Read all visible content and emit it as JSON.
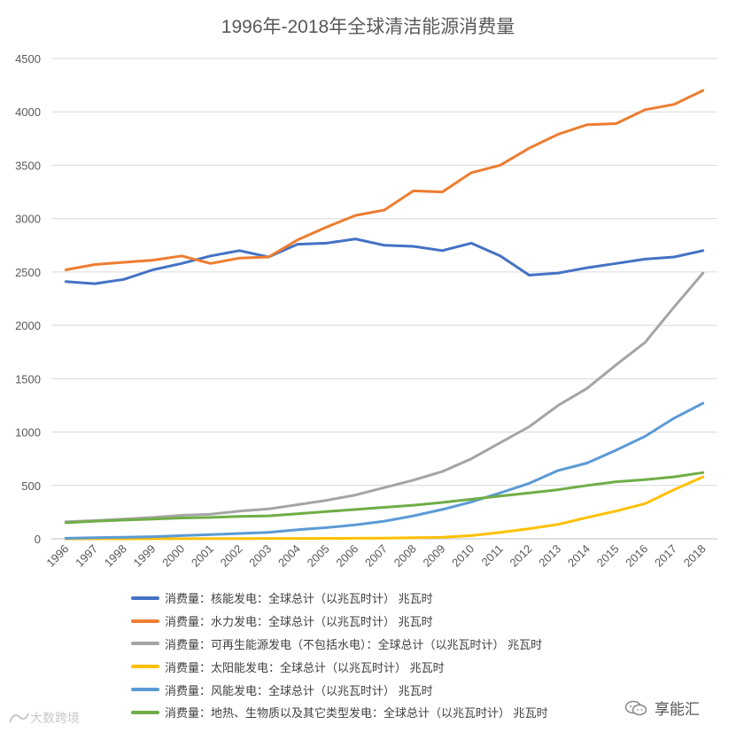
{
  "chart_data": {
    "type": "line",
    "title": "1996年-2018年全球清洁能源消费量",
    "xlabel": "",
    "ylabel": "",
    "ylim": [
      0,
      4500
    ],
    "yticks": [
      0,
      500,
      1000,
      1500,
      2000,
      2500,
      3000,
      3500,
      4000,
      4500
    ],
    "grid": true,
    "legend_position": "bottom",
    "categories": [
      "1996",
      "1997",
      "1998",
      "1999",
      "2000",
      "2001",
      "2002",
      "2003",
      "2004",
      "2005",
      "2006",
      "2007",
      "2008",
      "2009",
      "2010",
      "2011",
      "2012",
      "2013",
      "2014",
      "2015",
      "2016",
      "2017",
      "2018"
    ],
    "series": [
      {
        "name": "消费量：核能发电：全球总计（以兆瓦时计） 兆瓦时",
        "color": "#4472c4",
        "values": [
          2410,
          2390,
          2430,
          2520,
          2580,
          2650,
          2700,
          2640,
          2760,
          2770,
          2810,
          2750,
          2740,
          2700,
          2770,
          2650,
          2470,
          2490,
          2540,
          2580,
          2620,
          2640,
          2700
        ]
      },
      {
        "name": "消费量：水力发电：全球总计（以兆瓦时计） 兆瓦时",
        "color": "#ed7d31",
        "values": [
          2520,
          2570,
          2590,
          2610,
          2650,
          2580,
          2630,
          2640,
          2800,
          2920,
          3030,
          3080,
          3260,
          3250,
          3430,
          3500,
          3660,
          3790,
          3880,
          3890,
          4020,
          4070,
          4200
        ]
      },
      {
        "name": "消费量：可再生能源发电（不包括水电）：全球总计（以兆瓦时计） 兆瓦时",
        "color": "#a5a5a5",
        "values": [
          160,
          170,
          185,
          200,
          220,
          230,
          260,
          280,
          320,
          360,
          410,
          480,
          550,
          630,
          750,
          900,
          1050,
          1250,
          1410,
          1630,
          1840,
          2170,
          2490
        ]
      },
      {
        "name": "消费量：太阳能发电：全球总计（以兆瓦时计） 兆瓦时",
        "color": "#ffc000",
        "values": [
          0,
          0,
          0,
          1,
          1,
          2,
          2,
          3,
          3,
          4,
          5,
          7,
          10,
          15,
          30,
          60,
          95,
          135,
          200,
          260,
          330,
          460,
          580
        ]
      },
      {
        "name": "消费量：风能发电：全球总计（以兆瓦时计） 兆瓦时",
        "color": "#5b9bd5",
        "values": [
          5,
          10,
          15,
          20,
          30,
          40,
          50,
          60,
          85,
          105,
          130,
          165,
          215,
          275,
          345,
          430,
          520,
          640,
          710,
          830,
          960,
          1130,
          1270
        ]
      },
      {
        "name": "消费量：地热、生物质以及其它类型发电：全球总计（以兆瓦时计） 兆瓦时",
        "color": "#70ad47",
        "values": [
          150,
          165,
          175,
          185,
          195,
          200,
          210,
          215,
          235,
          255,
          275,
          295,
          315,
          340,
          370,
          400,
          430,
          460,
          500,
          535,
          555,
          580,
          620
        ]
      }
    ]
  },
  "watermark": {
    "text": "大数跨境"
  },
  "brand": {
    "name": "享能汇"
  }
}
